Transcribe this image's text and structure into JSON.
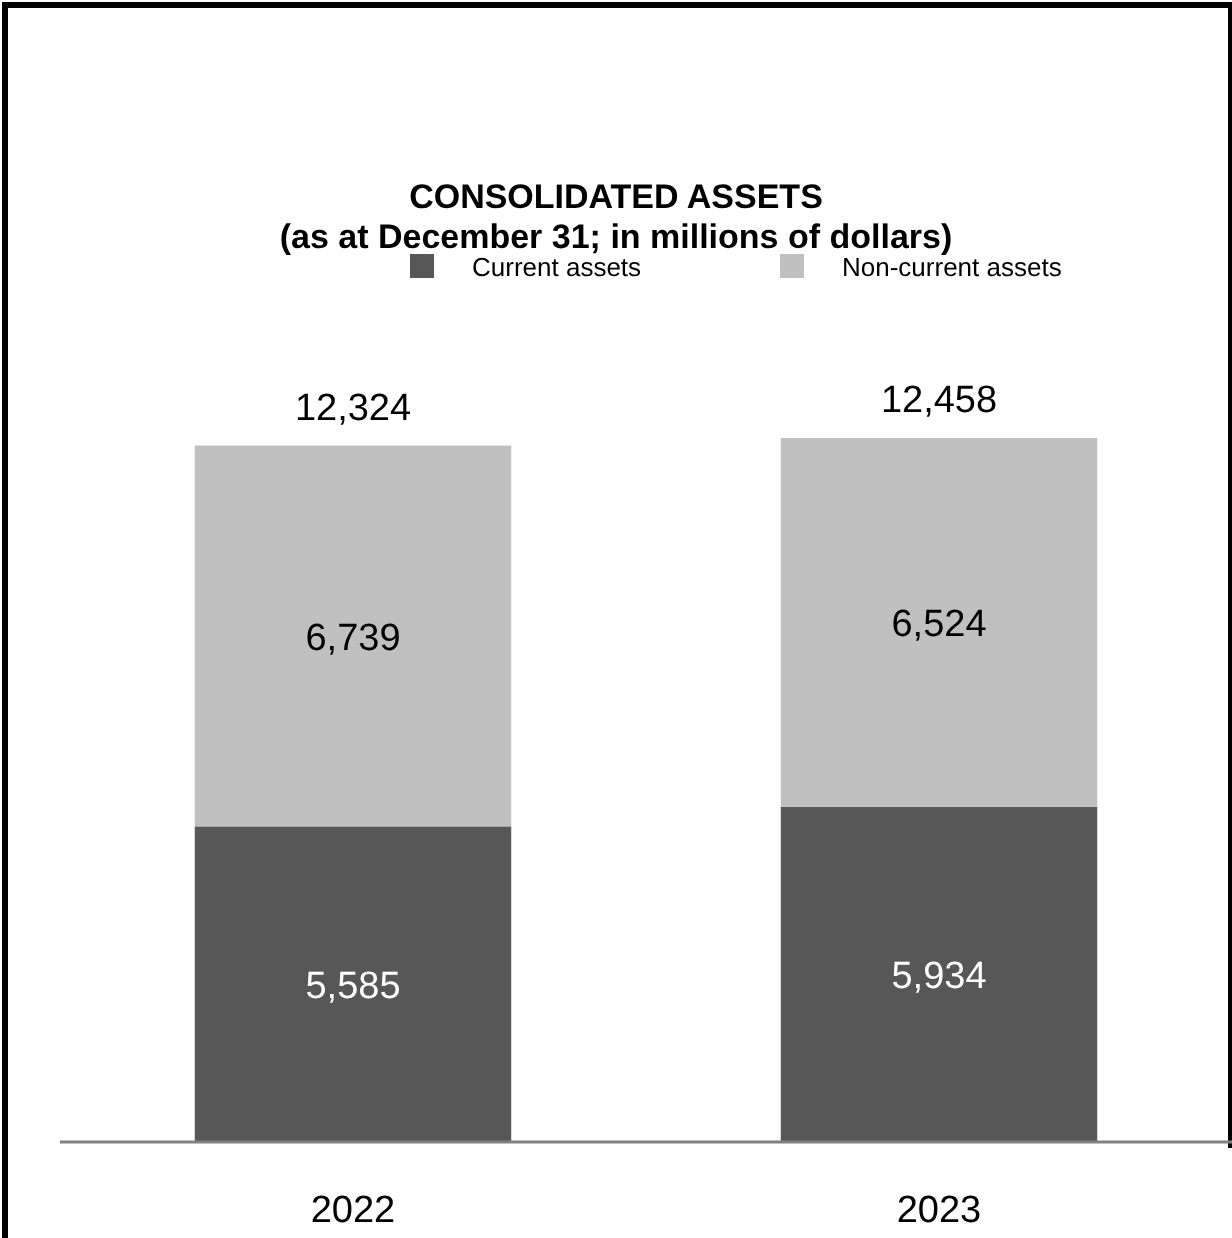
{
  "chart_data": {
    "type": "bar",
    "title": "CONSOLIDATED ASSETS",
    "subtitle": "(as at December 31; in millions of dollars)",
    "categories": [
      "2022",
      "2023"
    ],
    "stacked": true,
    "series": [
      {
        "name": "Current assets",
        "color": "#575757",
        "values": [
          5585,
          5934
        ],
        "value_labels": [
          "5,585",
          "5,934"
        ]
      },
      {
        "name": "Non-current assets",
        "color": "#c0c0c0",
        "values": [
          6739,
          6524
        ],
        "value_labels": [
          "6,739",
          "6,524"
        ]
      }
    ],
    "totals": [
      "12,324",
      "12,458"
    ],
    "legend": "top"
  }
}
